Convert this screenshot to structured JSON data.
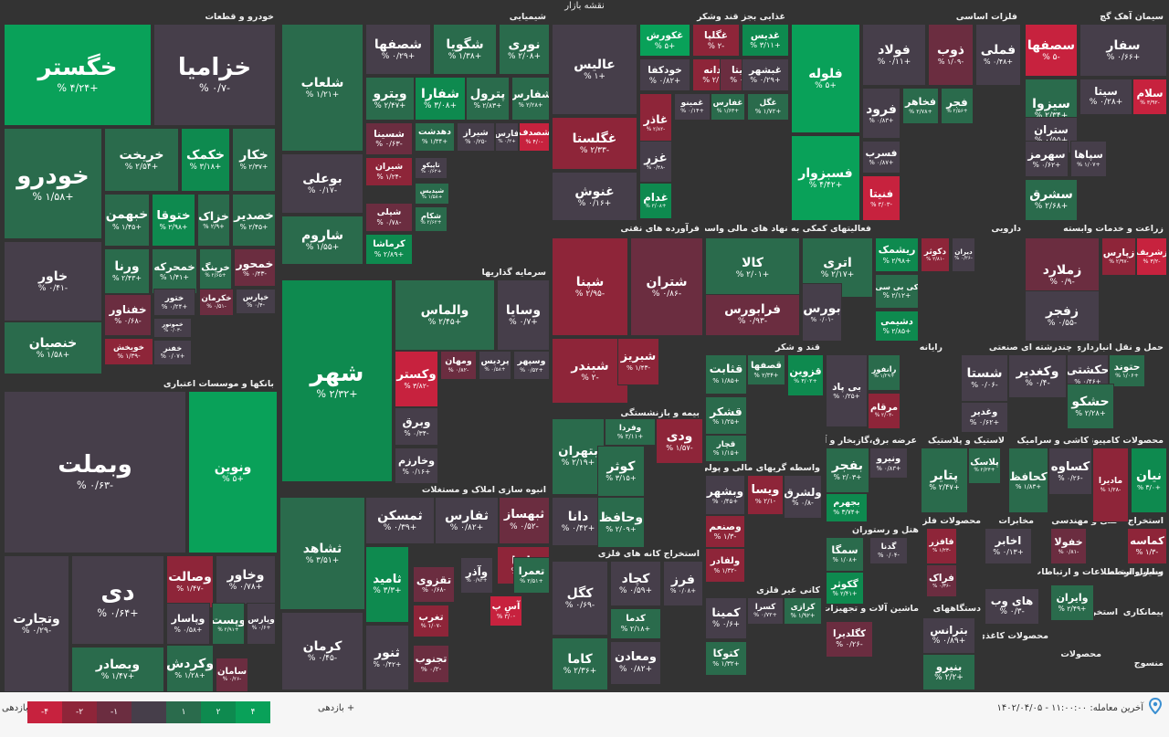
{
  "map_title": "نقشه بازار",
  "colors": {
    "c4": "#09a159",
    "c2": "#0e8a4f",
    "c1": "#2a6b4c",
    "c0": "#463e4a",
    "n1": "#6b2d40",
    "n2": "#8e2539",
    "n4": "#c7223e"
  },
  "sectors": [
    {
      "id": "auto",
      "name": "خودرو و قطعات"
    },
    {
      "id": "chem",
      "name": "شیمیایی"
    },
    {
      "id": "food",
      "name": "غذایی بجز قند وشکر"
    },
    {
      "id": "metal",
      "name": "فلزات اساسی"
    },
    {
      "id": "cement",
      "name": "سیمان آهک گچ"
    },
    {
      "id": "bank",
      "name": "بانکها و موسسات اعتباری"
    },
    {
      "id": "invest",
      "name": "سرمایه گذاریها"
    },
    {
      "id": "oil",
      "name": "فرآورده های نفتی"
    },
    {
      "id": "fin",
      "name": "فعالیتهای کمکی به نهاد های مالی واسط"
    },
    {
      "id": "pharma",
      "name": "دارویی"
    },
    {
      "id": "agri",
      "name": "زراعت و خدمات وابسته"
    },
    {
      "id": "sugar",
      "name": "قند و شکر"
    },
    {
      "id": "build",
      "name": "انبوه سازی املاک و مستغلات"
    },
    {
      "id": "health",
      "name": "بیمه و بازنشستگی"
    },
    {
      "id": "mining",
      "name": "استخراج کانه های فلزی"
    },
    {
      "id": "pc",
      "name": "رایانه"
    },
    {
      "id": "multi",
      "name": "چندرشته ای صنعتی"
    },
    {
      "id": "trans",
      "name": "حمل و نقل انبارداری و"
    },
    {
      "id": "credit",
      "name": "واسطه گریهای مالی و پولی"
    },
    {
      "id": "elec",
      "name": "عرضه برق،گازبخار و آب"
    },
    {
      "id": "rubber",
      "name": "لاستیک و پلاستیک"
    },
    {
      "id": "tile",
      "name": "کاشی و سرامیک"
    },
    {
      "id": "comp",
      "name": "محصولات کامپیوتری"
    },
    {
      "id": "hotel",
      "name": "هتل و رستوران"
    },
    {
      "id": "metalp",
      "name": "محصولات فلزی"
    },
    {
      "id": "telecom",
      "name": "مخابرات"
    },
    {
      "id": "eng",
      "name": "فنی و مهندسی"
    },
    {
      "id": "quarry",
      "name": "استخراج"
    },
    {
      "id": "nonmetal",
      "name": "کانی غیر فلزی"
    },
    {
      "id": "machine",
      "name": "ماشین آلات و تجهیزات"
    },
    {
      "id": "devices",
      "name": "دستگاههای"
    },
    {
      "id": "info",
      "name": "اطلاعات و ارتباطات"
    },
    {
      "id": "intermed",
      "name": "سایر واسطه"
    },
    {
      "id": "vehicle",
      "name": "وسایل ارتباطی"
    },
    {
      "id": "coal",
      "name": "استخراج زغال"
    },
    {
      "id": "contract",
      "name": "پیمانکاری"
    },
    {
      "id": "paper",
      "name": "محصولات کاغذی"
    },
    {
      "id": "prod",
      "name": "محصولات"
    },
    {
      "id": "textile",
      "name": "منسوج"
    }
  ],
  "tiles": [
    {
      "name": "خگستر",
      "pct": "+۴/۲۴ %",
      "c": "c4"
    },
    {
      "name": "خزامیا",
      "pct": "-۰/۷ %",
      "c": "c0"
    },
    {
      "name": "خودرو",
      "pct": "+۱/۵۸ %",
      "c": "c1"
    },
    {
      "name": "خریخت",
      "pct": "+۲/۵۴ %",
      "c": "c1"
    },
    {
      "name": "خکمک",
      "pct": "+۳/۱۸ %",
      "c": "c2"
    },
    {
      "name": "خکار",
      "pct": "+۲/۳۷ %",
      "c": "c1"
    },
    {
      "name": "خاور",
      "pct": "-۰/۴۱ %",
      "c": "c0"
    },
    {
      "name": "خبهمن",
      "pct": "+۱/۴۵ %",
      "c": "c1"
    },
    {
      "name": "ختوقا",
      "pct": "+۲/۹۸ %",
      "c": "c2"
    },
    {
      "name": "خزاک",
      "pct": "+۲/۹ %",
      "c": "c1"
    },
    {
      "name": "خصدیر",
      "pct": "+۲/۴۵ %",
      "c": "c1"
    },
    {
      "name": "ورنا",
      "pct": "+۲/۴۳ %",
      "c": "c1"
    },
    {
      "name": "خمحرکه",
      "pct": "+۱/۴۱ %",
      "c": "c1"
    },
    {
      "name": "خرینگ",
      "pct": "+۲/۶۵ %",
      "c": "c1"
    },
    {
      "name": "خمحور",
      "pct": "-۰/۴۳ %",
      "c": "n1"
    },
    {
      "name": "خفناور",
      "pct": "-۰/۶۸ %",
      "c": "n1"
    },
    {
      "name": "ختور",
      "pct": "+۰/۲۴ %",
      "c": "c0"
    },
    {
      "name": "خکرمان",
      "pct": "-۰/۵۱ %",
      "c": "n1"
    },
    {
      "name": "خنصیان",
      "pct": "+۱/۵۸ %",
      "c": "c1"
    },
    {
      "name": "خموتور",
      "pct": "-۰/۰۳ %",
      "c": "c0"
    },
    {
      "name": "خویخش",
      "pct": "-۱/۳۹ %",
      "c": "n2"
    },
    {
      "name": "خفنر",
      "pct": "+۰/۰۷ %",
      "c": "c0"
    },
    {
      "name": "خپارس",
      "pct": "-۰/۴ %",
      "c": "c0"
    },
    {
      "name": "شصفها",
      "pct": "+۰/۲۹ %",
      "c": "c0"
    },
    {
      "name": "شگویا",
      "pct": "+۱/۳۸ %",
      "c": "c1"
    },
    {
      "name": "نوری",
      "pct": "+۲/۰۸ %",
      "c": "c1"
    },
    {
      "name": "شلعاب",
      "pct": "+۱/۲۱ %",
      "c": "c1"
    },
    {
      "name": "ویترو",
      "pct": "+۲/۴۷ %",
      "c": "c1"
    },
    {
      "name": "شفارا",
      "pct": "+۳/۰۸ %",
      "c": "c2"
    },
    {
      "name": "پترول",
      "pct": "+۲/۸۳ %",
      "c": "c1"
    },
    {
      "name": "شفارس",
      "pct": "+۲/۲۸ %",
      "c": "c1"
    },
    {
      "name": "بوعلی",
      "pct": "-۰/۱۷ %",
      "c": "c0"
    },
    {
      "name": "شسینا",
      "pct": "-۰/۶۳ %",
      "c": "n1"
    },
    {
      "name": "دهدشت",
      "pct": "+۱/۳۴ %",
      "c": "c1"
    },
    {
      "name": "شیراز",
      "pct": "-۰/۲۵ %",
      "c": "c0"
    },
    {
      "name": "فارس",
      "pct": "+۰/۲ %",
      "c": "c0"
    },
    {
      "name": "شصدف",
      "pct": "-۴/۰ %",
      "c": "n4"
    },
    {
      "name": "شیران",
      "pct": "-۱/۲۴ %",
      "c": "n2"
    },
    {
      "name": "تاپیکو",
      "pct": "+۰/۶۲ %",
      "c": "c0"
    },
    {
      "name": "شپدیس",
      "pct": "+۱/۵۸ %",
      "c": "c1"
    },
    {
      "name": "شپلی",
      "pct": "-۰/۷۸ %",
      "c": "n1"
    },
    {
      "name": "شکام",
      "pct": "+۲/۶۲ %",
      "c": "c1"
    },
    {
      "name": "شاروم",
      "pct": "+۱/۵۵ %",
      "c": "c1"
    },
    {
      "name": "کرماشا",
      "pct": "+۲/۸۹ %",
      "c": "c2"
    },
    {
      "name": "عالیس",
      "pct": "+۱ %",
      "c": "c0"
    },
    {
      "name": "غکورش",
      "pct": "+۵ %",
      "c": "c4"
    },
    {
      "name": "غگلپا",
      "pct": "-۲ %",
      "c": "n2"
    },
    {
      "name": "غدیس",
      "pct": "+۳/۱۱ %",
      "c": "c2"
    },
    {
      "name": "خودکفا",
      "pct": "+۰/۸۲ %",
      "c": "c0"
    },
    {
      "name": "غدانه",
      "pct": "-۲/۰۵ %",
      "c": "n2"
    },
    {
      "name": "غویتا",
      "pct": "-۰/۷۵ %",
      "c": "n1"
    },
    {
      "name": "غبشهر",
      "pct": "+۰/۲۹ %",
      "c": "c0"
    },
    {
      "name": "غگلستا",
      "pct": "-۲/۳۳ %",
      "c": "n2"
    },
    {
      "name": "غاذر",
      "pct": "-۲/۸۲ %",
      "c": "n2"
    },
    {
      "name": "غمینو",
      "pct": "+۰/۱۴ %",
      "c": "c0"
    },
    {
      "name": "غفارس",
      "pct": "+۱/۶۳ %",
      "c": "c1"
    },
    {
      "name": "غگل",
      "pct": "+۱/۷۲ %",
      "c": "c1"
    },
    {
      "name": "غنوش",
      "pct": "+۰/۱۶ %",
      "c": "c0"
    },
    {
      "name": "غزر",
      "pct": "-۰/۴۸ %",
      "c": "c0"
    },
    {
      "name": "غدام",
      "pct": "+۳/۰۸ %",
      "c": "c2"
    },
    {
      "name": "فلوله",
      "pct": "+۵ %",
      "c": "c4"
    },
    {
      "name": "فولاد",
      "pct": "+۰/۱۱ %",
      "c": "c0"
    },
    {
      "name": "ذوب",
      "pct": "-۱/۰۹ %",
      "c": "n1"
    },
    {
      "name": "فملی",
      "pct": "+۰/۴۸ %",
      "c": "c0"
    },
    {
      "name": "فرود",
      "pct": "+۰/۸۳ %",
      "c": "c0"
    },
    {
      "name": "فخاهر",
      "pct": "+۲/۷۸ %",
      "c": "c1"
    },
    {
      "name": "فجر",
      "pct": "+۲/۵۶ %",
      "c": "c1"
    },
    {
      "name": "فسرب",
      "pct": "+۰/۸۷ %",
      "c": "c0"
    },
    {
      "name": "فسبزوار",
      "pct": "+۴/۴۲ %",
      "c": "c4"
    },
    {
      "name": "فنیتا",
      "pct": "-۳/۰۳ %",
      "c": "n4"
    },
    {
      "name": "سفار",
      "pct": "+۰/۶۶ %",
      "c": "c0"
    },
    {
      "name": "سصفها",
      "pct": "-۵ %",
      "c": "n4"
    },
    {
      "name": "سیجنو",
      "pct": "+۳/۰۳ %",
      "c": "c2"
    },
    {
      "name": "سیتا",
      "pct": "+۰/۲۸ %",
      "c": "c0"
    },
    {
      "name": "سلام",
      "pct": "-۳/۹۲ %",
      "c": "n4"
    },
    {
      "name": "سیزوا",
      "pct": "+۲/۳۴ %",
      "c": "c1"
    },
    {
      "name": "ستران",
      "pct": "+۰/۵۵ %",
      "c": "c0"
    },
    {
      "name": "سهرمز",
      "pct": "+۰/۶۲ %",
      "c": "c0"
    },
    {
      "name": "سپاها",
      "pct": "+۱/۰۷ %",
      "c": "c0"
    },
    {
      "name": "سشرق",
      "pct": "+۲/۶۸ %",
      "c": "c1"
    },
    {
      "name": "وبملت",
      "pct": "-۰/۶۳ %",
      "c": "c0"
    },
    {
      "name": "ونوین",
      "pct": "+۵ %",
      "c": "c4"
    },
    {
      "name": "دی",
      "pct": "+۰/۶۴ %",
      "c": "c0"
    },
    {
      "name": "وتجارت",
      "pct": "-۰/۲۹ %",
      "c": "c0"
    },
    {
      "name": "وصالت",
      "pct": "-۱/۴۷ %",
      "c": "n2"
    },
    {
      "name": "وخاور",
      "pct": "+۰/۷۸ %",
      "c": "c0"
    },
    {
      "name": "وپاسار",
      "pct": "+۰/۵۸ %",
      "c": "c0"
    },
    {
      "name": "وپست",
      "pct": "+۲/۹۱ %",
      "c": "c1"
    },
    {
      "name": "وپارس",
      "pct": "+۰/۶ %",
      "c": "c0"
    },
    {
      "name": "وبصادر",
      "pct": "+۱/۴۷ %",
      "c": "c1"
    },
    {
      "name": "وکردش",
      "pct": "+۱/۲۸ %",
      "c": "c1"
    },
    {
      "name": "سامان",
      "pct": "-۰/۲۶ %",
      "c": "n1"
    },
    {
      "name": "شهر",
      "pct": "+۲/۳۲ %",
      "c": "c2"
    },
    {
      "name": "والماس",
      "pct": "+۲/۴۵ %",
      "c": "c1"
    },
    {
      "name": "وسایا",
      "pct": "+۰/۷ %",
      "c": "c0"
    },
    {
      "name": "وکستر",
      "pct": "-۳/۸۲ %",
      "c": "n4"
    },
    {
      "name": "ومهان",
      "pct": "-۰/۸۲ %",
      "c": "n1"
    },
    {
      "name": "پردیس",
      "pct": "+۰/۵۸ %",
      "c": "c0"
    },
    {
      "name": "وسپهر",
      "pct": "+۰/۵۲ %",
      "c": "c0"
    },
    {
      "name": "وبرق",
      "pct": "-۰/۳۴ %",
      "c": "c0"
    },
    {
      "name": "وخارزم",
      "pct": "+۰/۱۶ %",
      "c": "c0"
    },
    {
      "name": "شپنا",
      "pct": "-۲/۹۵ %",
      "c": "n2"
    },
    {
      "name": "شتران",
      "pct": "-۰/۸۶ %",
      "c": "n1"
    },
    {
      "name": "شبندر",
      "pct": "-۲ %",
      "c": "n2"
    },
    {
      "name": "شبریز",
      "pct": "-۱/۴۳ %",
      "c": "n2"
    },
    {
      "name": "کالا",
      "pct": "+۲/۰۱ %",
      "c": "c1"
    },
    {
      "name": "اتری",
      "pct": "+۲/۱۷ %",
      "c": "c1"
    },
    {
      "name": "فرابورس",
      "pct": "-۰/۹۳ %",
      "c": "n1"
    },
    {
      "name": "بورس",
      "pct": "-۰/۰۱ %",
      "c": "c0"
    },
    {
      "name": "ریشمک",
      "pct": "+۲/۹۸ %",
      "c": "c2"
    },
    {
      "name": "دکوثر",
      "pct": "-۲/۸۱ %",
      "c": "n2"
    },
    {
      "name": "دیران",
      "pct": "-۰/۲۶ %",
      "c": "c0"
    },
    {
      "name": "کی بی سی",
      "pct": "+۲/۱۲ %",
      "c": "c1"
    },
    {
      "name": "دشیمی",
      "pct": "+۲/۸۵ %",
      "c": "c2"
    },
    {
      "name": "زملارد",
      "pct": "-۰/۹ %",
      "c": "n1"
    },
    {
      "name": "زپارس",
      "pct": "-۲/۹۷ %",
      "c": "n2"
    },
    {
      "name": "زشریف",
      "pct": "-۳/۲ %",
      "c": "n4"
    },
    {
      "name": "زفجر",
      "pct": "-۰/۵۵ %",
      "c": "c0"
    },
    {
      "name": "قثابت",
      "pct": "+۱/۸۵ %",
      "c": "c1"
    },
    {
      "name": "قصفها",
      "pct": "+۲/۳۴ %",
      "c": "c1"
    },
    {
      "name": "قزوین",
      "pct": "+۳/۰۲ %",
      "c": "c2"
    },
    {
      "name": "قشکر",
      "pct": "+۱/۲۵ %",
      "c": "c1"
    },
    {
      "name": "قچار",
      "pct": "+۱/۱۵ %",
      "c": "c1"
    },
    {
      "name": "ثشاهد",
      "pct": "+۳/۵۱ %",
      "c": "c1"
    },
    {
      "name": "ثمسکن",
      "pct": "+۰/۳۹ %",
      "c": "c0"
    },
    {
      "name": "ثفارس",
      "pct": "+۰/۸۲ %",
      "c": "c0"
    },
    {
      "name": "ثبهساز",
      "pct": "-۰/۵۲ %",
      "c": "n1"
    },
    {
      "name": "ثامید",
      "pct": "+۳/۳ %",
      "c": "c2"
    },
    {
      "name": "ثنور",
      "pct": "+۰/۴۲ %",
      "c": "c0"
    },
    {
      "name": "کرمان",
      "pct": "-۰/۴۵ %",
      "c": "c0"
    },
    {
      "name": "بتهران",
      "pct": "+۲/۱۹ %",
      "c": "c1"
    },
    {
      "name": "وفردا",
      "pct": "+۲/۱۱ %",
      "c": "c1"
    },
    {
      "name": "ودی",
      "pct": "-۱/۵۷ %",
      "c": "n2"
    },
    {
      "name": "کوثر",
      "pct": "+۳/۱۵ %",
      "c": "c1"
    },
    {
      "name": "دانا",
      "pct": "+۰/۴۲ %",
      "c": "c0"
    },
    {
      "name": "وحافظ",
      "pct": "+۲/۰۹ %",
      "c": "c1"
    },
    {
      "name": "کگل",
      "pct": "-۰/۶۹ %",
      "c": "c0"
    },
    {
      "name": "کچاد",
      "pct": "+۰/۵۹ %",
      "c": "c0"
    },
    {
      "name": "فرز",
      "pct": "+۰/۰۸ %",
      "c": "c0"
    },
    {
      "name": "کدما",
      "pct": "+۲/۱۸ %",
      "c": "c1"
    },
    {
      "name": "کاما",
      "pct": "+۲/۳۶ %",
      "c": "c1"
    },
    {
      "name": "ومعادن",
      "pct": "+۰/۸۲ %",
      "c": "c0"
    },
    {
      "name": "وکغدیر",
      "pct": "-۰/۴ %",
      "c": "c0"
    },
    {
      "name": "شستا",
      "pct": "-۰/۰۶ %",
      "c": "c0"
    },
    {
      "name": "وغدیر",
      "pct": "+۰/۶۲ %",
      "c": "c0"
    },
    {
      "name": "حکشتی",
      "pct": "+۰/۴۶ %",
      "c": "c0"
    },
    {
      "name": "حتوند",
      "pct": "+۱/۰۶ %",
      "c": "c1"
    },
    {
      "name": "حشکو",
      "pct": "+۲/۲۸ %",
      "c": "c1"
    },
    {
      "name": "های وب",
      "pct": "-۰/۳ %",
      "c": "c0"
    },
    {
      "name": "رانفور",
      "pct": "+۱/۲۹ %",
      "c": "c1"
    },
    {
      "name": "بی پاد",
      "pct": "+۰/۲۵ %",
      "c": "c0"
    },
    {
      "name": "مرقام",
      "pct": "-۲/۰۳ %",
      "c": "n2"
    },
    {
      "name": "وبشهر",
      "pct": "+۰/۴۵ %",
      "c": "c0"
    },
    {
      "name": "ویسا",
      "pct": "-۲/۱ %",
      "c": "n2"
    },
    {
      "name": "ولشرق",
      "pct": "-۰/۸ %",
      "c": "c0"
    },
    {
      "name": "وصنعم",
      "pct": "-۱/۳ %",
      "c": "n2"
    },
    {
      "name": "ولفادر",
      "pct": "-۱/۳۲ %",
      "c": "n2"
    },
    {
      "name": "بفجر",
      "pct": "+۲/۰۳ %",
      "c": "c1"
    },
    {
      "name": "ونیرو",
      "pct": "+۰/۸۳ %",
      "c": "c0"
    },
    {
      "name": "پتایر",
      "pct": "+۲/۴۷ %",
      "c": "c1"
    },
    {
      "name": "پلاسک",
      "pct": "+۲/۳۴ %",
      "c": "c1"
    },
    {
      "name": "کحافظ",
      "pct": "+۱/۸۳ %",
      "c": "c1"
    },
    {
      "name": "کساوه",
      "pct": "-۰/۲۶ %",
      "c": "c0"
    },
    {
      "name": "مادیرا",
      "pct": "-۱/۲۸ %",
      "c": "n2"
    },
    {
      "name": "نیان",
      "pct": "+۳/۰ %",
      "c": "c2"
    },
    {
      "name": "بجهرم",
      "pct": "+۳/۷۴ %",
      "c": "c2"
    },
    {
      "name": "سمگا",
      "pct": "+۱/۰۸ %",
      "c": "c1"
    },
    {
      "name": "گکوثر",
      "pct": "+۲/۴۱ %",
      "c": "c2"
    },
    {
      "name": "گدنا",
      "pct": "-۰/۰۴ %",
      "c": "c0"
    },
    {
      "name": "فافزر",
      "pct": "-۱/۲۳ %",
      "c": "n2"
    },
    {
      "name": "فراک",
      "pct": "-۰/۳۶ %",
      "c": "n1"
    },
    {
      "name": "اخابر",
      "pct": "+۰/۱۳ %",
      "c": "c0"
    },
    {
      "name": "خفولا",
      "pct": "-۰/۸۱ %",
      "c": "n1"
    },
    {
      "name": "کماسه",
      "pct": "-۱/۳ %",
      "c": "n2"
    },
    {
      "name": "کرازی",
      "pct": "+۱/۹۲ %",
      "c": "c1"
    },
    {
      "name": "کسرا",
      "pct": "+۰/۷۲ %",
      "c": "c0"
    },
    {
      "name": "کمینا",
      "pct": "+۰/۶ %",
      "c": "c0"
    },
    {
      "name": "کتوکا",
      "pct": "+۱/۳۲ %",
      "c": "c1"
    },
    {
      "name": "کگلدیرا",
      "pct": "-۰/۲۶ %",
      "c": "n1"
    },
    {
      "name": "بترانس",
      "pct": "+۰/۸۹ %",
      "c": "c0"
    },
    {
      "name": "بنیرو",
      "pct": "+۲/۲ %",
      "c": "c1"
    },
    {
      "name": "وایران",
      "pct": "+۲/۴۹ %",
      "c": "c1"
    },
    {
      "name": "تاتغا",
      "pct": "-۱/۷ %",
      "c": "n2"
    },
    {
      "name": "آسِ پ",
      "pct": "-۳/۰ %",
      "c": "n4"
    },
    {
      "name": "تغرب",
      "pct": "-۱/۰۷ %",
      "c": "n2"
    },
    {
      "name": "تجنوب",
      "pct": "-۰/۲ %",
      "c": "n1"
    },
    {
      "name": "تعمرا",
      "pct": "+۲/۵۱ %",
      "c": "c1"
    },
    {
      "name": "وآذر",
      "pct": "+۰/۹۳ %",
      "c": "c0"
    },
    {
      "name": "تقزوی",
      "pct": "-۰/۶۸ %",
      "c": "n1"
    }
  ],
  "legend": {
    "neg_label": "بازدهی -",
    "pos_label": "بازدهی +",
    "boxes": [
      {
        "label": "-۴",
        "c": "n4"
      },
      {
        "label": "-۲",
        "c": "n2"
      },
      {
        "label": "-۱",
        "c": "n1"
      },
      {
        "label": "",
        "c": "c0"
      },
      {
        "label": "۱",
        "c": "c1"
      },
      {
        "label": "۲",
        "c": "c2"
      },
      {
        "label": "۴",
        "c": "c4"
      }
    ]
  },
  "last_trade": "آخرین معامله: ۱۱:۰۰:۰۰ - ۱۴۰۲/۰۴/۰۵",
  "info_icon": "pin-icon"
}
